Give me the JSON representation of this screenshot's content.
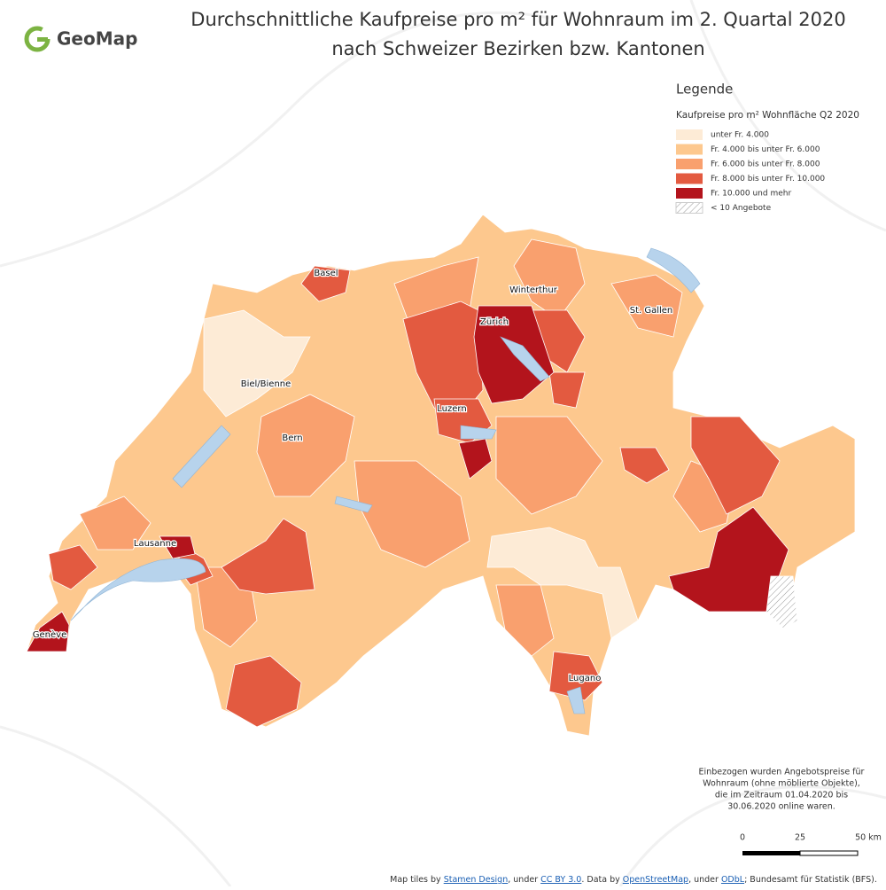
{
  "logo": "GeoMap",
  "title": [
    "Durchschnittliche Kaufpreise pro m² für Wohnraum im 2. Quartal 2020",
    "nach Schweizer Bezirken bzw. Kantonen"
  ],
  "legend": {
    "heading": "Legende",
    "subtitle": "Kaufpreise pro m² Wohnfläche Q2 2020",
    "items": [
      {
        "label": "unter Fr. 4.000",
        "color": "#fdebd6"
      },
      {
        "label": "Fr. 4.000 bis unter Fr. 6.000",
        "color": "#fdc88e"
      },
      {
        "label": "Fr. 6.000 bis unter Fr. 8.000",
        "color": "#f9a06e"
      },
      {
        "label": "Fr. 8.000 bis unter Fr. 10.000",
        "color": "#e35a40"
      },
      {
        "label": "Fr. 10.000 und mehr",
        "color": "#b3141c"
      },
      {
        "label": "< 10 Angebote",
        "color": "#ffffff",
        "hatched": true
      }
    ]
  },
  "cities": [
    "Basel",
    "Winterthur",
    "Zürich",
    "St. Gallen",
    "Biel/Bienne",
    "Luzern",
    "Bern",
    "Lausanne",
    "Genève",
    "Lugano"
  ],
  "note": [
    "Einbezogen wurden Angebotspreise für",
    "Wohnraum (ohne möblierte Objekte),",
    "die im Zeitraum 01.04.2020 bis",
    "30.06.2020 online waren."
  ],
  "scale": [
    "0",
    "25",
    "50 km"
  ],
  "attribution": [
    "Map tiles by ",
    "Stamen Design",
    ", under ",
    "CC BY 3.0",
    ". Data by ",
    "OpenStreetMap",
    ", under ",
    "ODbL",
    "; Bundesamt für Statistik (BFS)."
  ]
}
